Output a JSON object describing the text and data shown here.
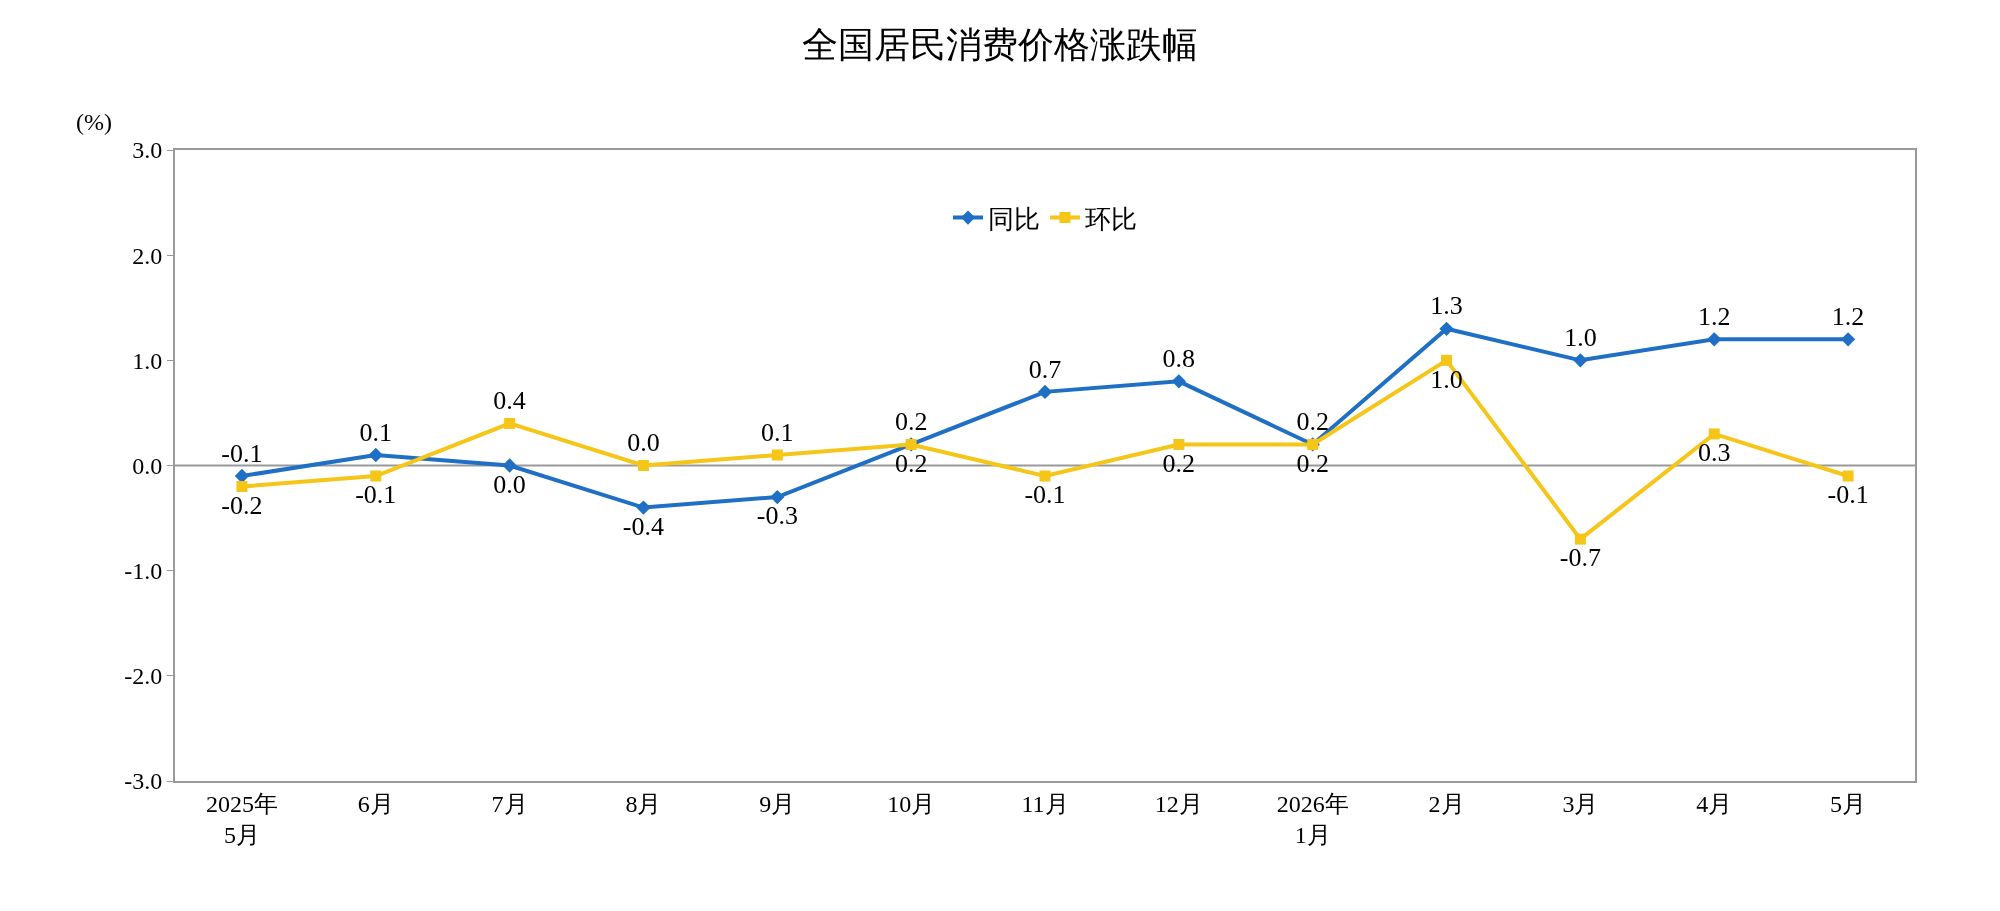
{
  "chart_data": {
    "type": "line",
    "title": "全国居民消费价格涨跌幅",
    "ylabel": "(%)",
    "categories": [
      "2025年\n5月",
      "6月",
      "7月",
      "8月",
      "9月",
      "10月",
      "11月",
      "12月",
      "2026年\n1月",
      "2月",
      "3月",
      "4月",
      "5月"
    ],
    "series": [
      {
        "name": "同比",
        "color": "#1f6fc5",
        "marker": "diamond",
        "values": [
          -0.1,
          0.1,
          0.0,
          -0.4,
          -0.3,
          0.2,
          0.7,
          0.8,
          0.2,
          1.3,
          1.0,
          1.2,
          1.2
        ],
        "value_labels": [
          "-0.1",
          "0.1",
          "0.0",
          "-0.4",
          "-0.3",
          "0.2",
          "0.7",
          "0.8",
          "0.2",
          "1.3",
          "1.0",
          "1.2",
          "1.2"
        ]
      },
      {
        "name": "环比",
        "color": "#f5c518",
        "marker": "square",
        "values": [
          -0.2,
          -0.1,
          0.4,
          0.0,
          0.1,
          0.2,
          -0.1,
          0.2,
          0.2,
          1.0,
          -0.7,
          0.3,
          -0.1
        ],
        "value_labels": [
          "-0.2",
          "-0.1",
          "0.4",
          "0.0",
          "0.1",
          "0.2",
          "-0.1",
          "0.2",
          "0.2",
          "1.0",
          "-0.7",
          "0.3",
          "-0.1"
        ]
      }
    ],
    "ylim": [
      -3,
      3
    ],
    "yticks": [
      {
        "value": -3,
        "label": "-3.0"
      },
      {
        "value": -2,
        "label": "-2.0"
      },
      {
        "value": -1,
        "label": "-1.0"
      },
      {
        "value": 0,
        "label": "0.0"
      },
      {
        "value": 1,
        "label": "1.0"
      },
      {
        "value": 2,
        "label": "2.0"
      },
      {
        "value": 3,
        "label": "3.0"
      }
    ],
    "ref_lines": [
      {
        "axis": "y",
        "value": 0,
        "color": "#999999"
      }
    ],
    "legend": "top",
    "line_style": "solid"
  }
}
